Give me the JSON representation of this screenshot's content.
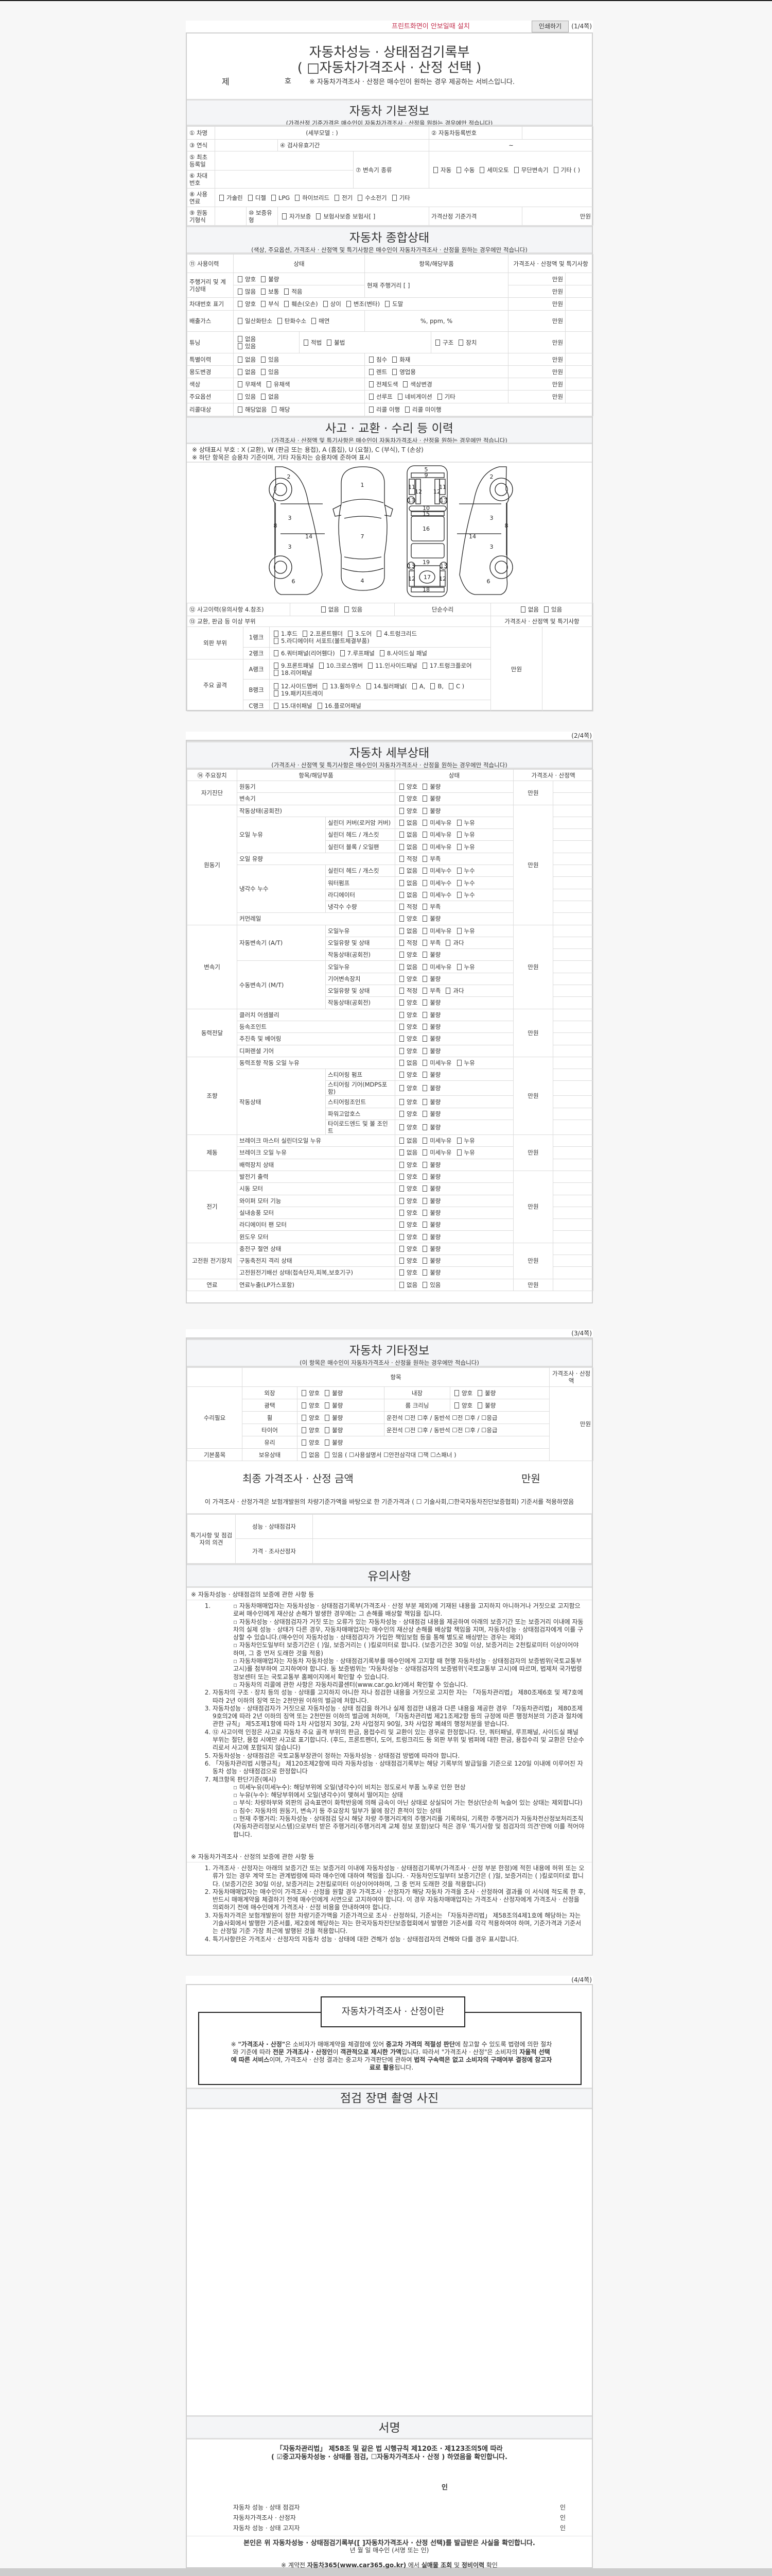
{
  "opt_sets": {
    "G": [
      "양호",
      "불량"
    ],
    "L": [
      "없음",
      "미세누유",
      "누유"
    ],
    "W": [
      "없음",
      "미세누수",
      "누수"
    ],
    "Q": [
      "적정",
      "부족"
    ],
    "Q3": [
      "적정",
      "부족",
      "과다"
    ],
    "E": [
      "없음",
      "있음"
    ]
  },
  "page1": {
    "hint": "프린트화면이 안보일때 설치",
    "print_button": "인쇄하기",
    "page_no": "(1/4쪽)",
    "title": "자동차성능 · 상태점검기록부",
    "subtitle": "( □자동차가격조사 · 산정 선택 )",
    "no_prefix": "제",
    "no_suffix": "호",
    "notice": "※ 자동차가격조사 · 산정은 매수인이 원하는 경우 제공하는 서비스입니다."
  },
  "basic": {
    "title": "자동차 기본정보",
    "subtitle": "(가격산정 기준가격은 매수인이 자동차가격조사 · 산정을 원하는 경우에만 적습니다)",
    "name_label": "① 차명",
    "detail_model": "(세부모델 :                    )",
    "reg_label": "② 자동차등록번호",
    "year_label": "③ 연식",
    "inspect_label": "④ 검사유효기간",
    "inspect_range": "~",
    "first_reg_label": "⑤ 최초등록일",
    "vin_label": "⑥ 차대번호",
    "trans_label": "⑦ 변속기 종류",
    "trans_opts": [
      "자동",
      "수동",
      "세미오토",
      "무단변속기",
      "기타 (            )"
    ],
    "fuel_label": "⑧ 사용연료",
    "fuel_opts": [
      "가솔린",
      "디젤",
      "LPG",
      "하이브리드",
      "전기",
      "수소전기",
      "기타"
    ],
    "engine_label": "⑨ 원동기형식",
    "warranty_label": "⑩ 보증유형",
    "warranty_opts": [
      "자가보증",
      "보험사보증 보험사[            ]"
    ],
    "base_price_label": "가격산정 기준가격",
    "unit": "만원"
  },
  "overall": {
    "title": "자동차 종합상태",
    "subtitle": "(색상, 주요옵션, 가격조사 · 산정액 및 특기사항은 매수인이 자동차가격조사 · 산정을 원하는 경우에만 적습니다)",
    "headers": [
      "⑪ 사용이력",
      "상태",
      "항목/해당부품",
      "가격조사 · 산정액 및 특기사항"
    ],
    "unit": "만원",
    "mileage_label": "주행거리 및 계기상태",
    "mileage_opts1": [
      "양호",
      "불량"
    ],
    "mileage_opts2": [
      "많음",
      "보통",
      "적음"
    ],
    "mileage_current": "현재 주행거리 [                    ]",
    "vin_mark_label": "차대번호 표기",
    "vin_mark_opts": [
      "양호",
      "부식",
      "훼손(오손)",
      "상이",
      "변조(변타)",
      "도말"
    ],
    "emission_label": "배출가스",
    "emission_opts": [
      "일산화탄소",
      "탄화수소",
      "매연"
    ],
    "emission_units": "%,       ppm,       %",
    "tuning_label": "튜닝",
    "tuning_opts1": [
      "없음",
      "있음"
    ],
    "tuning_opts2": [
      "적법",
      "불법"
    ],
    "tuning_opts3": [
      "구조",
      "장치"
    ],
    "special_label": "특별이력",
    "special_opts1": [
      "없음",
      "있음"
    ],
    "special_opts2": [
      "침수",
      "화재"
    ],
    "usage_label": "용도변경",
    "usage_opts1": [
      "없음",
      "있음"
    ],
    "usage_opts2": [
      "렌트",
      "영업용"
    ],
    "color_label": "색상",
    "color_opts1": [
      "무채색",
      "유채색"
    ],
    "color_opts2": [
      "전체도색",
      "색상변경"
    ],
    "options_label": "주요옵션",
    "options_opts1": [
      "있음",
      "없음"
    ],
    "options_opts2": [
      "선루프",
      "네비게이션",
      "기타"
    ],
    "recall_label": "리콜대상",
    "recall_opts1": [
      "해당없음",
      "해당"
    ],
    "recall_opts2": [
      "리콜 이행",
      "리콜 미이행"
    ]
  },
  "accident": {
    "title": "사고 · 교환 · 수리 등 이력",
    "subtitle": "(가격조사 · 산정액 및 특기사항은 매수인이 자동차가격조사 · 산정을 원하는 경우에만 적습니다)",
    "note1": "※ 상태표시 부호 : X (교환), W (판금 또는 용접), A (흠집), U (요철), C (부식), T (손상)",
    "note2": "※ 하단 항목은 승용차 기준이며, 기타 자동차는 승용차에 준하여 표시",
    "diagram_labels": [
      "2",
      "3",
      "8",
      "14",
      "3",
      "6",
      "1",
      "7",
      "4",
      "5",
      "9",
      "11",
      "11",
      "12",
      "12",
      "13",
      "13",
      "10",
      "15",
      "16",
      "19",
      "13",
      "13",
      "12",
      "17",
      "12",
      "18",
      "2",
      "3",
      "8",
      "14",
      "3",
      "6"
    ],
    "history_label": "⑫ 사고이력(유의사항 4.참조)",
    "history_opts": [
      "없음",
      "있음"
    ],
    "simple_repair_label": "단순수리",
    "simple_repair_opts": [
      "없음",
      "있음"
    ],
    "parts_label": "⑬ 교환, 판금 등 이상 부위",
    "price_header": "가격조사 · 산정액 및 특기사항",
    "outer_label": "외판 부위",
    "frame_label": "주요 골격",
    "rank1_label": "1랭크",
    "rank1_opts": [
      "1.후드",
      "2.프론트휀더",
      "3.도어",
      "4.트렁크리드",
      "5.라디에이터 서포트(볼트체결부품)"
    ],
    "rank2_label": "2랭크",
    "rank2_opts": [
      "6.쿼터패널(리어휀다)",
      "7.루프패널",
      "8.사이드실 패널"
    ],
    "rankA_label": "A랭크",
    "rankA_opts": [
      "9.프론트패널",
      "10.크로스멤버",
      "11.인사이드패널",
      "17.트렁크플로어",
      "18.리어패널"
    ],
    "rankB_label": "B랭크",
    "rankB_opts": [
      "12.사이드멤버",
      "13.휠하우스",
      "14.필러패널(",
      "A,",
      "B,",
      "C )",
      "19.패키지트레이"
    ],
    "rankC_label": "C랭크",
    "rankC_opts": [
      "15.대쉬패널",
      "16.플로어패널"
    ],
    "unit": "만원"
  },
  "detail": {
    "page_no": "(2/4쪽)",
    "title": "자동차 세부상태",
    "subtitle": "(가격조사 · 산정액 및 특기사항은 매수인이 자동차가격조사 · 산정을 원하는 경우에만 적습니다)",
    "headers": [
      "⑭ 주요장치",
      "항목/해당부품",
      "상태",
      "가격조사 · 산정액"
    ],
    "unit": "만원",
    "groups": [
      {
        "name": "자기진단",
        "items": [
          {
            "label": "원동기",
            "opts": "G"
          },
          {
            "label": "변속기",
            "opts": "G"
          }
        ]
      },
      {
        "name": "원동기",
        "items": [
          {
            "label": "작동상태(공회전)",
            "opts": "G"
          },
          {
            "label": "오일 누유",
            "subs": [
              {
                "label": "실린더 커버(로커암 커버)",
                "opts": "L"
              },
              {
                "label": "실린더 헤드 / 개스킷",
                "opts": "L"
              },
              {
                "label": "실린더 블록 / 오일팬",
                "opts": "L"
              }
            ]
          },
          {
            "label": "오일 유량",
            "opts": "Q"
          },
          {
            "label": "냉각수 누수",
            "subs": [
              {
                "label": "실린더 헤드 / 개스킷",
                "opts": "W"
              },
              {
                "label": "워터펌프",
                "opts": "W"
              },
              {
                "label": "라디에이터",
                "opts": "W"
              },
              {
                "label": "냉각수 수량",
                "opts": "Q"
              }
            ]
          },
          {
            "label": "커먼레일",
            "opts": "G"
          }
        ]
      },
      {
        "name": "변속기",
        "items": [
          {
            "label": "자동변속기 (A/T)",
            "subs": [
              {
                "label": "오일누유",
                "opts": "L"
              },
              {
                "label": "오일유량 및 상태",
                "opts": "Q3"
              },
              {
                "label": "작동상태(공회전)",
                "opts": "G"
              }
            ]
          },
          {
            "label": "수동변속기 (M/T)",
            "subs": [
              {
                "label": "오일누유",
                "opts": "L"
              },
              {
                "label": "기어변속장치",
                "opts": "G"
              },
              {
                "label": "오일유량 및 상태",
                "opts": "Q3"
              },
              {
                "label": "작동상태(공회전)",
                "opts": "G"
              }
            ]
          }
        ]
      },
      {
        "name": "동력전달",
        "items": [
          {
            "label": "클러치 어셈블리",
            "opts": "G"
          },
          {
            "label": "등속조인트",
            "opts": "G"
          },
          {
            "label": "추진축 및 베어링",
            "opts": "G"
          },
          {
            "label": "디퍼렌셜 기어",
            "opts": "G"
          }
        ]
      },
      {
        "name": "조향",
        "items": [
          {
            "label": "동력조향 작동 오일 누유",
            "opts": "L"
          },
          {
            "label": "작동상태",
            "subs": [
              {
                "label": "스티어링 펌프",
                "opts": "G"
              },
              {
                "label": "스티어링 기어(MDPS포함)",
                "opts": "G"
              },
              {
                "label": "스티어링조인트",
                "opts": "G"
              },
              {
                "label": "파워고압호스",
                "opts": "G"
              },
              {
                "label": "타이로드엔드 및 볼 조인트",
                "opts": "G"
              }
            ]
          }
        ]
      },
      {
        "name": "제동",
        "items": [
          {
            "label": "브레이크 마스터 실린더오일 누유",
            "opts": "L"
          },
          {
            "label": "브레이크 오일 누유",
            "opts": "L"
          },
          {
            "label": "배력장치 상태",
            "opts": "G"
          }
        ]
      },
      {
        "name": "전기",
        "items": [
          {
            "label": "발전기 출력",
            "opts": "G"
          },
          {
            "label": "시동 모터",
            "opts": "G"
          },
          {
            "label": "와이퍼 모터 기능",
            "opts": "G"
          },
          {
            "label": "실내송풍 모터",
            "opts": "G"
          },
          {
            "label": "라디에이터 팬 모터",
            "opts": "G"
          },
          {
            "label": "윈도우 모터",
            "opts": "G"
          }
        ]
      },
      {
        "name": "고전원 전기장치",
        "items": [
          {
            "label": "충전구 절연 상태",
            "opts": "G"
          },
          {
            "label": "구동축전지 격리 상태",
            "opts": "G"
          },
          {
            "label": "고전원전기배선 상태(접속단자,피복,보호기구)",
            "opts": "G"
          }
        ]
      },
      {
        "name": "연료",
        "items": [
          {
            "label": "연료누출(LP가스포함)",
            "opts": "E"
          }
        ]
      }
    ]
  },
  "other": {
    "page_no": "(3/4쪽)",
    "title": "자동차 기타정보",
    "subtitle": "(이 항목은 매수인이 자동차가격조사 · 산정을 원하는 경우에만 적습니다)",
    "item_header": "항목",
    "price_header": "가격조사 · 산정액",
    "repair_label": "수리필요",
    "exterior": "외장",
    "interior": "내장",
    "gloss": "광택",
    "cleaning": "룸 크리닝",
    "wheel": "휠",
    "tire": "타이어",
    "glass": "유리",
    "position_text": "운전석 ☐전 ☐후 / 동반석 ☐전 ☐후 / ☐응급",
    "basic_items_label": "기본품목",
    "possession_label": "보유상태",
    "possession_opts": [
      "없음",
      "있음 ( ☐사용설명서 ☐안전삼각대 ☐잭 ☐스패너 )"
    ],
    "unit": "만원",
    "final_title": "최종 가격조사 · 산정 금액",
    "final_unit": "만원",
    "final_statement": "이 가격조사 · 산정가격은 보험개발원의 차량기준가액을 바탕으로 한 기준가격과 ( ☐ 기술사회,☐한국자동차진단보증협회) 기준서를 적용하였음",
    "opinion_label": "특기사항 및 점검자의 의견",
    "inspector_label": "성능 · 상태점검자",
    "appraiser_label": "가격 · 조사산정자",
    "caution_title": "유의사항"
  },
  "notes": [
    {
      "title": "※ 자동차성능 · 상태점검의 보증에 관한 사항 등",
      "items": [
        {
          "text": "",
          "bullets": [
            "자동차매매업자는 자동차성능 · 상태점검기록부(가격조사 · 산정 부분 제외)에 기재된 내용을 고지하지 아니하거나 거짓으로 고지함으로써 매수인에게 재산상 손해가 발생한 경우에는 그 손해를 배상할 책임을 집니다.",
            "자동차성능 · 상태점검자가 거짓 또는 오류가 있는 자동차성능 · 상태점검 내용을 제공하여 아래의 보증기간 또는 보증거리 이내에 자동차의 실제 성능 · 상태가 다른 경우, 자동차매매업자는 매수인의 재산상 손해를 배상할 책임을 지며, 자동차성능 · 상태점검자에게 이를 구상할 수 있습니다.(매수인이 자동차성능 · 상태점검자가 가입한 책임보험 등을 통해 별도로 배상받는 경우는 제외)",
            "자동차인도일부터 보증기간은 (      )일, 보증거리는 (      )킬로미터로 합니다. (보증기간은 30일 이상, 보증거리는 2천킬로미터 이상이어야 하며, 그 중 먼저 도래한 것을 적용)",
            "자동차매매업자는 자동차 자동차성능 · 상태점검기록부를 매수인에게 고지할 때 현행 자동차성능 · 상태점검자의 보증범위(국토교통부 고시)를 첨부하여 고지하여야 합니다. 동 보증범위는 '자동차성능 · 상태점검자의 보증범위'(국토교통부 고시)에 따르며, 법제처 국가법령정보센터 또는 국토교통부 홈페이지에서 확인할 수 있습니다.",
            "자동차의 리콜에 관한 사항은 자동차리콜센터(www.car.go.kr)에서 확인할 수 있습니다."
          ]
        },
        {
          "text": "자동차의 구조 · 장치 등의 성능 · 상태를 고지하지 아니한 자나 점검한 내용을 거짓으로 고지한 자는 「자동차관리법」 제80조제6호 및 제7호에 따라 2년 이하의 징역 또는 2천만원 이하의 벌금에 처합니다.",
          "bullets": []
        },
        {
          "text": "자동차성능 · 상태점검자가 거짓으로 자동차성능 · 상태 점검을 하거나 실제 점검한 내용과 다른 내용을 제공한 경우 「자동차관리법」 제80조제9호의2에 따라 2년 이하의 징역 또는 2천만원 이하의 벌금에 처하며, 「자동차관리법 제21조제2항 등의 규정에 따른 행정처분의 기준과 절차에 관한 규칙」 제5조제1항에 따라 1차 사업정지 30일, 2차 사업정지 90일, 3차 사업장 폐쇄의 행정처분을 받습니다.",
          "bullets": []
        },
        {
          "text": "⑫ 사고이력 인정은 사고로 자동차 주요 골격 부위의 판금, 용접수리 및 교환이 있는 경우로 한정합니다. 단, 쿼터패널, 루프패널, 사이드실 패널 부위는 절단, 용접 시에만 사고로 표기합니다. (후드, 프론트펜더, 도어, 트렁크리드 등 외판 부위 및 범퍼에 대한 판금, 용접수리 및 교환은 단순수리로서 사고에 포함되지 않습니다)",
          "bullets": []
        },
        {
          "text": "자동차성능 · 상태점검은 국토교통부장관이 정하는 자동차성능 · 상태점검 방법에 따라야 합니다.",
          "bullets": []
        },
        {
          "text": "「자동차관리법 시행규칙」 제120조제2항에 따라 자동차성능 · 상태점검기록부는 해당 기록부의 발급일을 기준으로 120일 이내에 이루어진 자동차 성능 · 상태점검으로 한정합니다",
          "bullets": []
        },
        {
          "text": "체크항목 판단기준(예시)",
          "bullets": [
            "미세누유(미세누수): 해당부위에 오일(냉각수)이 비치는 정도로서 부품 노후로 인한 현상",
            "누유(누수): 해당부위에서 오일(냉각수)이 맺혀서 떨어지는 상태",
            "부식: 차량하부와 외판의 금속표면이 화학반응에 의해 금속이 아닌 상태로 상실되어 가는 현상(단순히 녹슬어 있는 상태는 제외합니다)",
            "침수: 자동차의 원동기, 변속기 등 주요장치 일부가 물에 잠긴 흔적이 있는 상태",
            "현재 주행거리: 자동차성능 · 상태점검 당시 해당 차량 주행거리계의 주행거리를 기록하되, 기록한 주행거리가 자동차전산정보처리조직(자동차관리정보시스템)으로부터 받은 주행거리(주행거리계 교체 정보 포함)보다 적은 경우 '특기사항 및 점검자의 의견'란에 이를 적어야 합니다."
          ]
        }
      ]
    },
    {
      "title": "※ 자동차가격조사 · 산정의 보증에 관한 사항 등",
      "items": [
        {
          "text": "가격조사 · 산정자는 아래의 보증기간 또는 보증거리 이내에 자동차성능 · 상태점검기록부(가격조사 · 산정 부분 한정)에 적힌 내용에 허위 또는 오류가 있는 경우 계약 또는 관계법령에 따라 매수인에 대하여 책임을 집니다.  · 자동차인도일부터 보증기간은 (      )일, 보증거리는 (      )킬로미터로 합니다. (보증기간은 30일 이상, 보증거리는 2천킬로미터 이상이어야하며, 그 중 먼저 도래한 것을 적용합니다)",
          "bullets": []
        },
        {
          "text": "자동차매매업자는 매수인이 가격조사 · 산정을 원할 경우 가격조사 · 산정자가 해당 자동차 가격을 조사 · 산정하여 결과를 이 서식에 적도록 한 후, 반드시 매매계약을 체결하기 전에 매수인에게 서면으로 고지하여야 합니다. 이 경우 자동차매매업자는 가격조사 · 산정자에게 가격조사 · 산정을 의뢰하기 전에 매수인에게 가격조사 · 산정 비용을 안내하여야 합니다.",
          "bullets": []
        },
        {
          "text": "자동차가격은 보험개발원이 정한 차량기준가액을 기준가격으로 조사 · 산정하되, 기준서는 「자동차관리법」 제58조의4제1호에 해당하는 자는 기술사회에서 발행한 기준서를, 제2호에 해당하는 자는 한국자동차진단보증협회에서 발행한 기준서를 각각 적용하여야 하며, 기준가격과 기준서는 산정일 기준 가장 최근에 발행된 것을 적용합니다.",
          "bullets": []
        },
        {
          "text": "특기사항란은 가격조사 · 산정자의 자동차 성능 · 상태에 대한 견해가 성능 · 상태점검자의 견해와 다를 경우 표시합니다.",
          "bullets": []
        }
      ]
    }
  ],
  "page4": {
    "page_no": "(4/4쪽)",
    "about_title": "자동차가격조사 · 산정이란",
    "about_segments": [
      {
        "t": "※ ",
        "b": false
      },
      {
        "t": "\"가격조사 · 산정\"",
        "b": true
      },
      {
        "t": "은 소비자가 매매계약을 체결함에 있어 ",
        "b": false
      },
      {
        "t": "중고차 가격의 적절성 판단",
        "b": true
      },
      {
        "t": "에 참고할 수 있도록 법령에 의한 절차와 기준에 따라 ",
        "b": false
      },
      {
        "t": "전문 가격조사 · 산정인",
        "b": true
      },
      {
        "t": "이 ",
        "b": false
      },
      {
        "t": "객관적으로 제시한 가액",
        "b": true
      },
      {
        "t": "입니다. 따라서 \"가격조사 · 산정\"은 소비자의 ",
        "b": false
      },
      {
        "t": "자율적 선택에 따른 서비스",
        "b": true
      },
      {
        "t": "이며, 가격조사 · 산정 결과는 중고차 가격판단에 관하여 ",
        "b": false
      },
      {
        "t": "법적 구속력은 없고 소비자의 구매여부 결정에 참고자료로 활용",
        "b": true
      },
      {
        "t": "됩니다.",
        "b": false
      }
    ],
    "photo_title": "점검 장면 촬영 사진",
    "sign_title": "서명",
    "law_line": "「자동차관리법」 제58조 및 같은 법 시행규칙 제120조 · 제123조의5에 따라",
    "confirm_line": "( ☑중고자동차성능 · 상태를 점검, ☐자동차가격조사 · 산정 ) 하였음을 확인합니다.",
    "seal": "인",
    "signers": [
      "자동차 성능 · 상태 점검자",
      "자동차가격조사 · 산정자",
      "자동차 성능 · 상태 고지자"
    ],
    "receipt": "본인은 위 자동차성능 · 상태점검기록부([   ]자동차가격조사 · 산정 선택)를 발급받은 사실을 확인합니다.",
    "date_line": "년    월    일      매수인                    (서명 또는 인)",
    "footer_segments": [
      {
        "t": "※ 계약전 ",
        "b": false
      },
      {
        "t": "자동차365(www.car365.go.kr)",
        "b": true
      },
      {
        "t": " 에서 ",
        "b": false
      },
      {
        "t": "실매물 조회",
        "b": true
      },
      {
        "t": " 및 ",
        "b": false
      },
      {
        "t": "정비이력",
        "b": true
      },
      {
        "t": " 확인",
        "b": false
      }
    ]
  }
}
